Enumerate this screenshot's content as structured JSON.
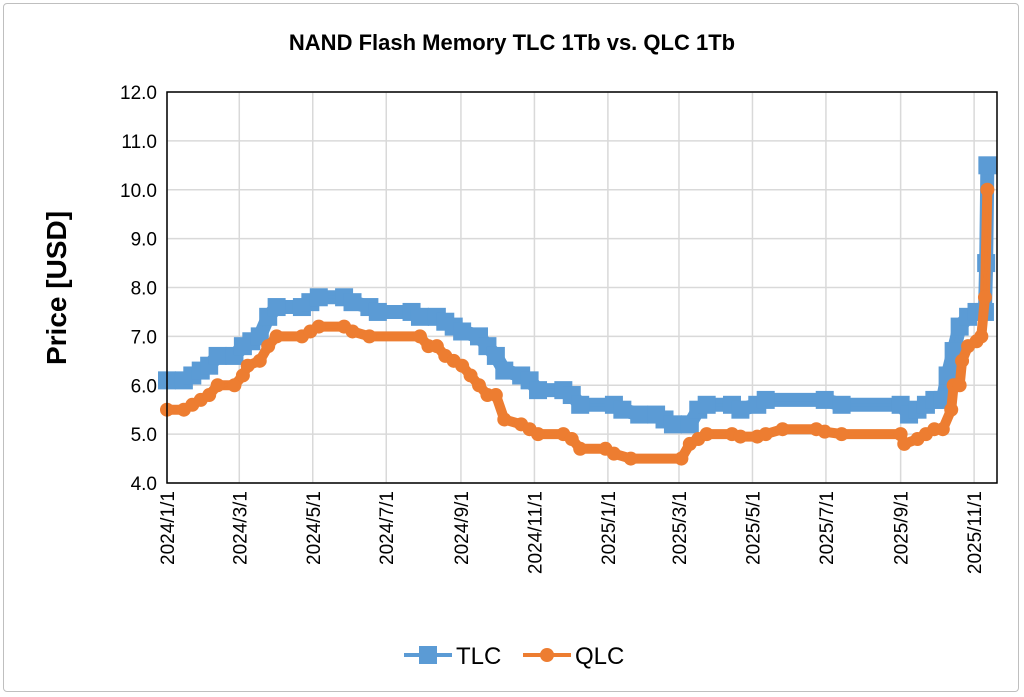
{
  "chart_data": {
    "type": "line",
    "title": "NAND Flash Memory TLC 1Tb vs. QLC 1Tb",
    "xlabel": "",
    "ylabel": "Price [USD]",
    "ylim": [
      4.0,
      12.0
    ],
    "yticks": [
      "4.0",
      "5.0",
      "6.0",
      "7.0",
      "8.0",
      "9.0",
      "10.0",
      "11.0",
      "12.0"
    ],
    "xlim": [
      "2024/1/1",
      "2025/11/20"
    ],
    "xticks": [
      "2024/1/1",
      "2024/3/1",
      "2024/5/1",
      "2024/7/1",
      "2024/9/1",
      "2024/11/1",
      "2025/1/1",
      "2025/3/1",
      "2025/5/1",
      "2025/7/1",
      "2025/9/1",
      "2025/11/1"
    ],
    "grid": true,
    "legend": "bottom",
    "series": [
      {
        "name": "TLC",
        "color": "#5b9bd5",
        "marker": "square",
        "x": [
          "2024/1/1",
          "2024/1/15",
          "2024/1/22",
          "2024/1/29",
          "2024/2/5",
          "2024/2/12",
          "2024/2/26",
          "2024/3/4",
          "2024/3/11",
          "2024/3/18",
          "2024/3/25",
          "2024/4/1",
          "2024/4/22",
          "2024/4/29",
          "2024/5/6",
          "2024/5/27",
          "2024/6/3",
          "2024/6/17",
          "2024/6/24",
          "2024/7/22",
          "2024/7/29",
          "2024/8/12",
          "2024/8/19",
          "2024/8/26",
          "2024/9/2",
          "2024/9/16",
          "2024/9/23",
          "2024/9/30",
          "2024/10/7",
          "2024/10/21",
          "2024/10/28",
          "2024/11/4",
          "2024/11/25",
          "2024/12/2",
          "2024/12/9",
          "2025/1/6",
          "2025/1/13",
          "2025/1/27",
          "2025/2/10",
          "2025/2/17",
          "2025/2/24",
          "2025/3/10",
          "2025/3/17",
          "2025/3/24",
          "2025/4/14",
          "2025/4/21",
          "2025/5/5",
          "2025/5/12",
          "2025/6/30",
          "2025/7/14",
          "2025/9/1",
          "2025/9/8",
          "2025/9/15",
          "2025/9/22",
          "2025/9/29",
          "2025/10/6",
          "2025/10/10",
          "2025/10/15",
          "2025/10/20",
          "2025/10/27",
          "2025/11/3",
          "2025/11/10",
          "2025/11/11",
          "2025/11/12"
        ],
        "y": [
          6.1,
          6.1,
          6.2,
          6.3,
          6.4,
          6.6,
          6.6,
          6.8,
          6.9,
          7.0,
          7.4,
          7.6,
          7.6,
          7.7,
          7.8,
          7.8,
          7.7,
          7.6,
          7.5,
          7.5,
          7.4,
          7.4,
          7.3,
          7.2,
          7.1,
          7.0,
          6.8,
          6.6,
          6.3,
          6.2,
          6.1,
          5.9,
          5.9,
          5.8,
          5.6,
          5.6,
          5.5,
          5.4,
          5.4,
          5.3,
          5.2,
          5.2,
          5.5,
          5.6,
          5.6,
          5.5,
          5.6,
          5.7,
          5.7,
          5.6,
          5.6,
          5.4,
          5.5,
          5.6,
          5.7,
          5.7,
          6.2,
          6.7,
          7.2,
          7.4,
          7.5,
          7.5,
          8.5,
          10.5
        ]
      },
      {
        "name": "QLC",
        "color": "#ed7d31",
        "marker": "circle",
        "x": [
          "2024/1/1",
          "2024/1/15",
          "2024/1/22",
          "2024/1/29",
          "2024/2/5",
          "2024/2/12",
          "2024/2/26",
          "2024/3/4",
          "2024/3/8",
          "2024/3/18",
          "2024/3/25",
          "2024/4/1",
          "2024/4/22",
          "2024/4/29",
          "2024/5/6",
          "2024/5/27",
          "2024/6/3",
          "2024/6/17",
          "2024/7/29",
          "2024/8/5",
          "2024/8/12",
          "2024/8/19",
          "2024/8/26",
          "2024/9/2",
          "2024/9/9",
          "2024/9/16",
          "2024/9/23",
          "2024/9/30",
          "2024/10/7",
          "2024/10/21",
          "2024/10/28",
          "2024/11/4",
          "2024/11/25",
          "2024/12/2",
          "2024/12/9",
          "2024/12/30",
          "2025/1/6",
          "2025/1/20",
          "2025/3/3",
          "2025/3/10",
          "2025/3/17",
          "2025/3/24",
          "2025/4/14",
          "2025/4/21",
          "2025/5/5",
          "2025/5/12",
          "2025/5/26",
          "2025/6/23",
          "2025/6/30",
          "2025/7/14",
          "2025/9/1",
          "2025/9/4",
          "2025/9/15",
          "2025/9/22",
          "2025/9/29",
          "2025/10/6",
          "2025/10/13",
          "2025/10/15",
          "2025/10/20",
          "2025/10/22",
          "2025/10/27",
          "2025/11/3",
          "2025/11/7",
          "2025/11/10",
          "2025/11/12"
        ],
        "y": [
          5.5,
          5.5,
          5.6,
          5.7,
          5.8,
          6.0,
          6.0,
          6.2,
          6.4,
          6.5,
          6.8,
          7.0,
          7.0,
          7.1,
          7.2,
          7.2,
          7.1,
          7.0,
          7.0,
          6.8,
          6.8,
          6.6,
          6.5,
          6.4,
          6.2,
          6.0,
          5.8,
          5.8,
          5.3,
          5.2,
          5.1,
          5.0,
          5.0,
          4.9,
          4.7,
          4.7,
          4.6,
          4.5,
          4.5,
          4.8,
          4.9,
          5.0,
          5.0,
          4.95,
          4.95,
          5.0,
          5.1,
          5.1,
          5.05,
          5.0,
          5.0,
          4.8,
          4.9,
          5.0,
          5.1,
          5.1,
          5.5,
          6.0,
          6.0,
          6.5,
          6.8,
          6.9,
          7.0,
          7.8,
          10.0
        ]
      }
    ]
  }
}
